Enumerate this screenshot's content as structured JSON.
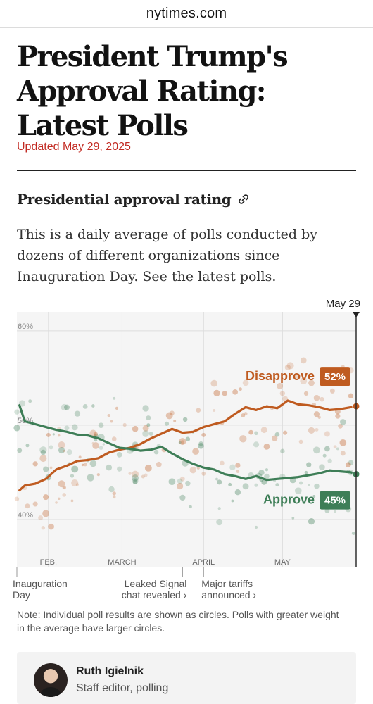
{
  "site": {
    "domain": "nytimes.com"
  },
  "article": {
    "headline_lines": [
      "President Trump's",
      "Approval Rating:",
      "Latest Polls"
    ],
    "updated": "Updated May 29, 2025"
  },
  "section": {
    "title": "Presidential approval rating",
    "intro": "This is a daily average of polls conducted by dozens of different organizations since Inauguration Day. ",
    "link_text": "See the latest polls."
  },
  "chart_data": {
    "type": "line",
    "date_marker": "May 29",
    "x_ticks": [
      "FEB.",
      "MARCH",
      "APRIL",
      "MAY"
    ],
    "y_ticks": [
      "60%",
      "50%",
      "40%"
    ],
    "ylim": [
      35,
      62
    ],
    "events": [
      {
        "label": "Inauguration\nDay"
      },
      {
        "label": "Leaked Signal\nchat revealed ›"
      },
      {
        "label": "Major tariffs\nannounced ›"
      }
    ],
    "series": [
      {
        "name": "Disapprove",
        "label": "52%",
        "color": "#bf5b20",
        "x": [
          "2025-01-21",
          "2025-01-23",
          "2025-01-27",
          "2025-01-31",
          "2025-02-04",
          "2025-02-08",
          "2025-02-12",
          "2025-02-16",
          "2025-02-20",
          "2025-02-24",
          "2025-02-28",
          "2025-03-04",
          "2025-03-08",
          "2025-03-12",
          "2025-03-16",
          "2025-03-20",
          "2025-03-24",
          "2025-03-28",
          "2025-04-01",
          "2025-04-05",
          "2025-04-09",
          "2025-04-13",
          "2025-04-17",
          "2025-04-21",
          "2025-04-25",
          "2025-04-29",
          "2025-05-03",
          "2025-05-07",
          "2025-05-11",
          "2025-05-15",
          "2025-05-19",
          "2025-05-23",
          "2025-05-27",
          "2025-05-29"
        ],
        "values": [
          43.1,
          43.6,
          43.8,
          44.3,
          45.3,
          45.7,
          46.2,
          46.3,
          46.5,
          47.1,
          47.4,
          47.6,
          48.0,
          48.6,
          49.1,
          49.6,
          49.2,
          49.3,
          49.8,
          50.1,
          50.4,
          51.2,
          51.9,
          51.6,
          52.0,
          51.8,
          52.6,
          52.2,
          52.1,
          51.9,
          51.6,
          51.7,
          51.9,
          52.0
        ]
      },
      {
        "name": "Approve",
        "label": "45%",
        "color": "#3e7e57",
        "x": [
          "2025-01-21",
          "2025-01-23",
          "2025-01-27",
          "2025-01-31",
          "2025-02-04",
          "2025-02-08",
          "2025-02-12",
          "2025-02-16",
          "2025-02-20",
          "2025-02-24",
          "2025-02-28",
          "2025-03-04",
          "2025-03-08",
          "2025-03-12",
          "2025-03-16",
          "2025-03-20",
          "2025-03-24",
          "2025-03-28",
          "2025-04-01",
          "2025-04-05",
          "2025-04-09",
          "2025-04-13",
          "2025-04-17",
          "2025-04-21",
          "2025-04-25",
          "2025-04-29",
          "2025-05-03",
          "2025-05-07",
          "2025-05-11",
          "2025-05-15",
          "2025-05-19",
          "2025-05-23",
          "2025-05-27",
          "2025-05-29"
        ],
        "values": [
          52.1,
          50.4,
          50.1,
          49.8,
          49.5,
          49.3,
          49.0,
          48.9,
          48.6,
          48.1,
          47.6,
          47.5,
          47.3,
          47.4,
          47.7,
          47.0,
          46.4,
          45.9,
          45.5,
          45.3,
          44.8,
          44.6,
          44.3,
          44.6,
          44.2,
          44.3,
          44.4,
          44.5,
          44.7,
          44.9,
          45.2,
          45.1,
          45.0,
          44.8
        ]
      }
    ]
  },
  "note": "Note: Individual poll results are shown as circles. Polls with greater weight in the average have larger circles.",
  "author": {
    "name": "Ruth Igielnik",
    "role": "Staff editor, polling"
  }
}
